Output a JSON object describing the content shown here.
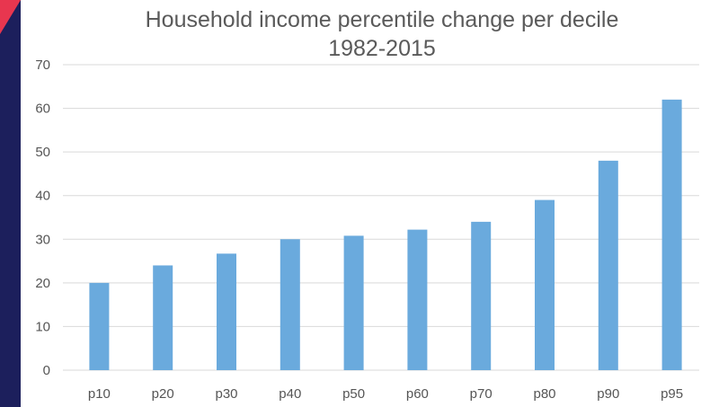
{
  "chart_data": {
    "type": "bar",
    "title_lines": [
      "Household income percentile change per decile",
      "1982-2015"
    ],
    "categories": [
      "p10",
      "p20",
      "p30",
      "p40",
      "p50",
      "p60",
      "p70",
      "p80",
      "p90",
      "p95"
    ],
    "values": [
      20,
      24,
      26.7,
      30,
      30.8,
      32.2,
      34,
      39,
      48,
      62
    ],
    "ylim": [
      0,
      70
    ],
    "yticks": [
      0,
      10,
      20,
      30,
      40,
      50,
      60,
      70
    ],
    "grid": true,
    "bar_color": "#6aaadd",
    "grid_color": "#d9d9d9",
    "xlabel": "",
    "ylabel": ""
  },
  "decoration": {
    "band_color": "#1c1f5c",
    "corner_color": "#e8364f"
  }
}
